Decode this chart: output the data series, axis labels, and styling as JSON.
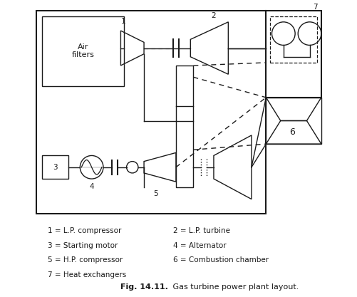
{
  "bg_color": "#ffffff",
  "line_color": "#1a1a1a",
  "dashed_color": "#1a1a1a",
  "fig_bold": "Fig. 14.11.",
  "fig_rest": " Gas turbine power plant layout.",
  "legend": [
    [
      "1 = L.P. compressor",
      "2 = L.P. turbine"
    ],
    [
      "3 = Starting motor",
      "4 = Alternator"
    ],
    [
      "5 = H.P. compressor",
      "6 = Combustion chamber"
    ],
    [
      "7 = Heat exchangers",
      ""
    ]
  ]
}
